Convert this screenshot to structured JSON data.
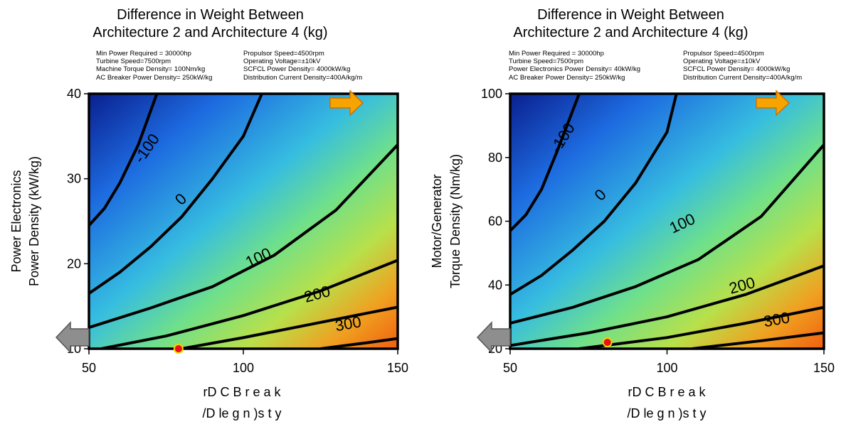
{
  "charts": [
    {
      "title_line1": "Difference in Weight Between",
      "title_line2": "Architecture 2 and Architecture 4 (kg)",
      "params_col1": [
        "Min Power Required = 30000hp",
        "Turbine Speed=7500rpm",
        "Machine Torque Density= 100Nm/kg",
        "AC Breaker Power Density= 250kW/kg"
      ],
      "params_col2": [
        "Propulsor Speed=4500rpm",
        "Operating Voltage=±10kV",
        "SCFCL Power Density= 4000kW/kg",
        "Distribution Current Density=400A/kg/m"
      ],
      "ylabel_line1": "Power Electronics",
      "ylabel_line2": "Power Density (kW/kg)",
      "xlabel_line1": "rD C    B r e a k",
      "xlabel_line2": "/D le g n )s  t  y"
    },
    {
      "title_line1": "Difference in Weight Between",
      "title_line2": "Architecture 2 and Architecture 4 (kg)",
      "params_col1": [
        "Min Power Required = 30000hp",
        "Turbine Speed=7500rpm",
        "Power Electronics Power Density= 40kW/kg",
        "AC Breaker Power Density= 250kW/kg"
      ],
      "params_col2": [
        "Propulsor Speed=4500rpm",
        "Operating Voltage=±10kV",
        "SCFCL Power Density= 4000kW/kg",
        "Distribution Current Density=400A/kg/m"
      ],
      "ylabel_line1": "Motor/Generator",
      "ylabel_line2": "Torque Density (Nm/kg)",
      "xlabel_line1": "rD C    B r e a k",
      "xlabel_line2": "/D le g n )s  t  y"
    }
  ],
  "chart_data": [
    {
      "type": "contour",
      "x": {
        "min": 50,
        "max": 150,
        "ticks": [
          50,
          100,
          150
        ]
      },
      "y": {
        "min": 10,
        "max": 40,
        "ticks": [
          10,
          20,
          30,
          40
        ]
      },
      "contour_levels": [
        "-100",
        "0",
        "100",
        "200",
        "300"
      ],
      "contours": [
        {
          "level": "-100",
          "points": [
            [
              50,
              24.5
            ],
            [
              55,
              26.5
            ],
            [
              60,
              29.5
            ],
            [
              66,
              34
            ],
            [
              72,
              40
            ]
          ]
        },
        {
          "level": "0",
          "points": [
            [
              50,
              16.5
            ],
            [
              60,
              19
            ],
            [
              70,
              22
            ],
            [
              80,
              25.5
            ],
            [
              90,
              30
            ],
            [
              100,
              35
            ],
            [
              106,
              40
            ]
          ]
        },
        {
          "level": "100",
          "points": [
            [
              50,
              12.5
            ],
            [
              70,
              14.8
            ],
            [
              90,
              17.3
            ],
            [
              110,
              21
            ],
            [
              130,
              26.3
            ],
            [
              150,
              34
            ]
          ]
        },
        {
          "level": "200",
          "points": [
            [
              54,
              10
            ],
            [
              75,
              11.5
            ],
            [
              100,
              13.9
            ],
            [
              125,
              16.8
            ],
            [
              150,
              20.4
            ]
          ]
        },
        {
          "level": "300",
          "points": [
            [
              80,
              10
            ],
            [
              100,
              11.3
            ],
            [
              125,
              13.1
            ],
            [
              150,
              14.9
            ]
          ]
        },
        {
          "level": "",
          "points": [
            [
              125,
              10
            ],
            [
              140,
              10.7
            ],
            [
              150,
              11.2
            ]
          ]
        }
      ],
      "marker": {
        "x": 79,
        "y": 10
      },
      "colormap": "jet"
    },
    {
      "type": "contour",
      "x": {
        "min": 50,
        "max": 150,
        "ticks": [
          50,
          100,
          150
        ]
      },
      "y": {
        "min": 20,
        "max": 100,
        "ticks": [
          20,
          40,
          60,
          80,
          100
        ]
      },
      "contour_levels": [
        "-100",
        "0",
        "100",
        "200",
        "300"
      ],
      "contours": [
        {
          "level": "-100",
          "points": [
            [
              50,
              57
            ],
            [
              55,
              62
            ],
            [
              60,
              70
            ],
            [
              65,
              82
            ],
            [
              72,
              100
            ]
          ]
        },
        {
          "level": "0",
          "points": [
            [
              50,
              37
            ],
            [
              60,
              43
            ],
            [
              70,
              51
            ],
            [
              80,
              60
            ],
            [
              90,
              72
            ],
            [
              100,
              88
            ],
            [
              103,
              100
            ]
          ]
        },
        {
          "level": "100",
          "points": [
            [
              50,
              28
            ],
            [
              70,
              33
            ],
            [
              90,
              39.5
            ],
            [
              110,
              48
            ],
            [
              130,
              61.5
            ],
            [
              150,
              84
            ]
          ]
        },
        {
          "level": "200",
          "points": [
            [
              50,
              21
            ],
            [
              75,
              25
            ],
            [
              100,
              30
            ],
            [
              125,
              37
            ],
            [
              150,
              46
            ]
          ]
        },
        {
          "level": "300",
          "points": [
            [
              72,
              20
            ],
            [
              100,
              23.5
            ],
            [
              125,
              28
            ],
            [
              150,
              33
            ]
          ]
        },
        {
          "level": "",
          "points": [
            [
              108,
              20
            ],
            [
              130,
              22.5
            ],
            [
              150,
              25
            ]
          ]
        }
      ],
      "marker": {
        "x": 81,
        "y": 22
      },
      "colormap": "jet"
    }
  ]
}
